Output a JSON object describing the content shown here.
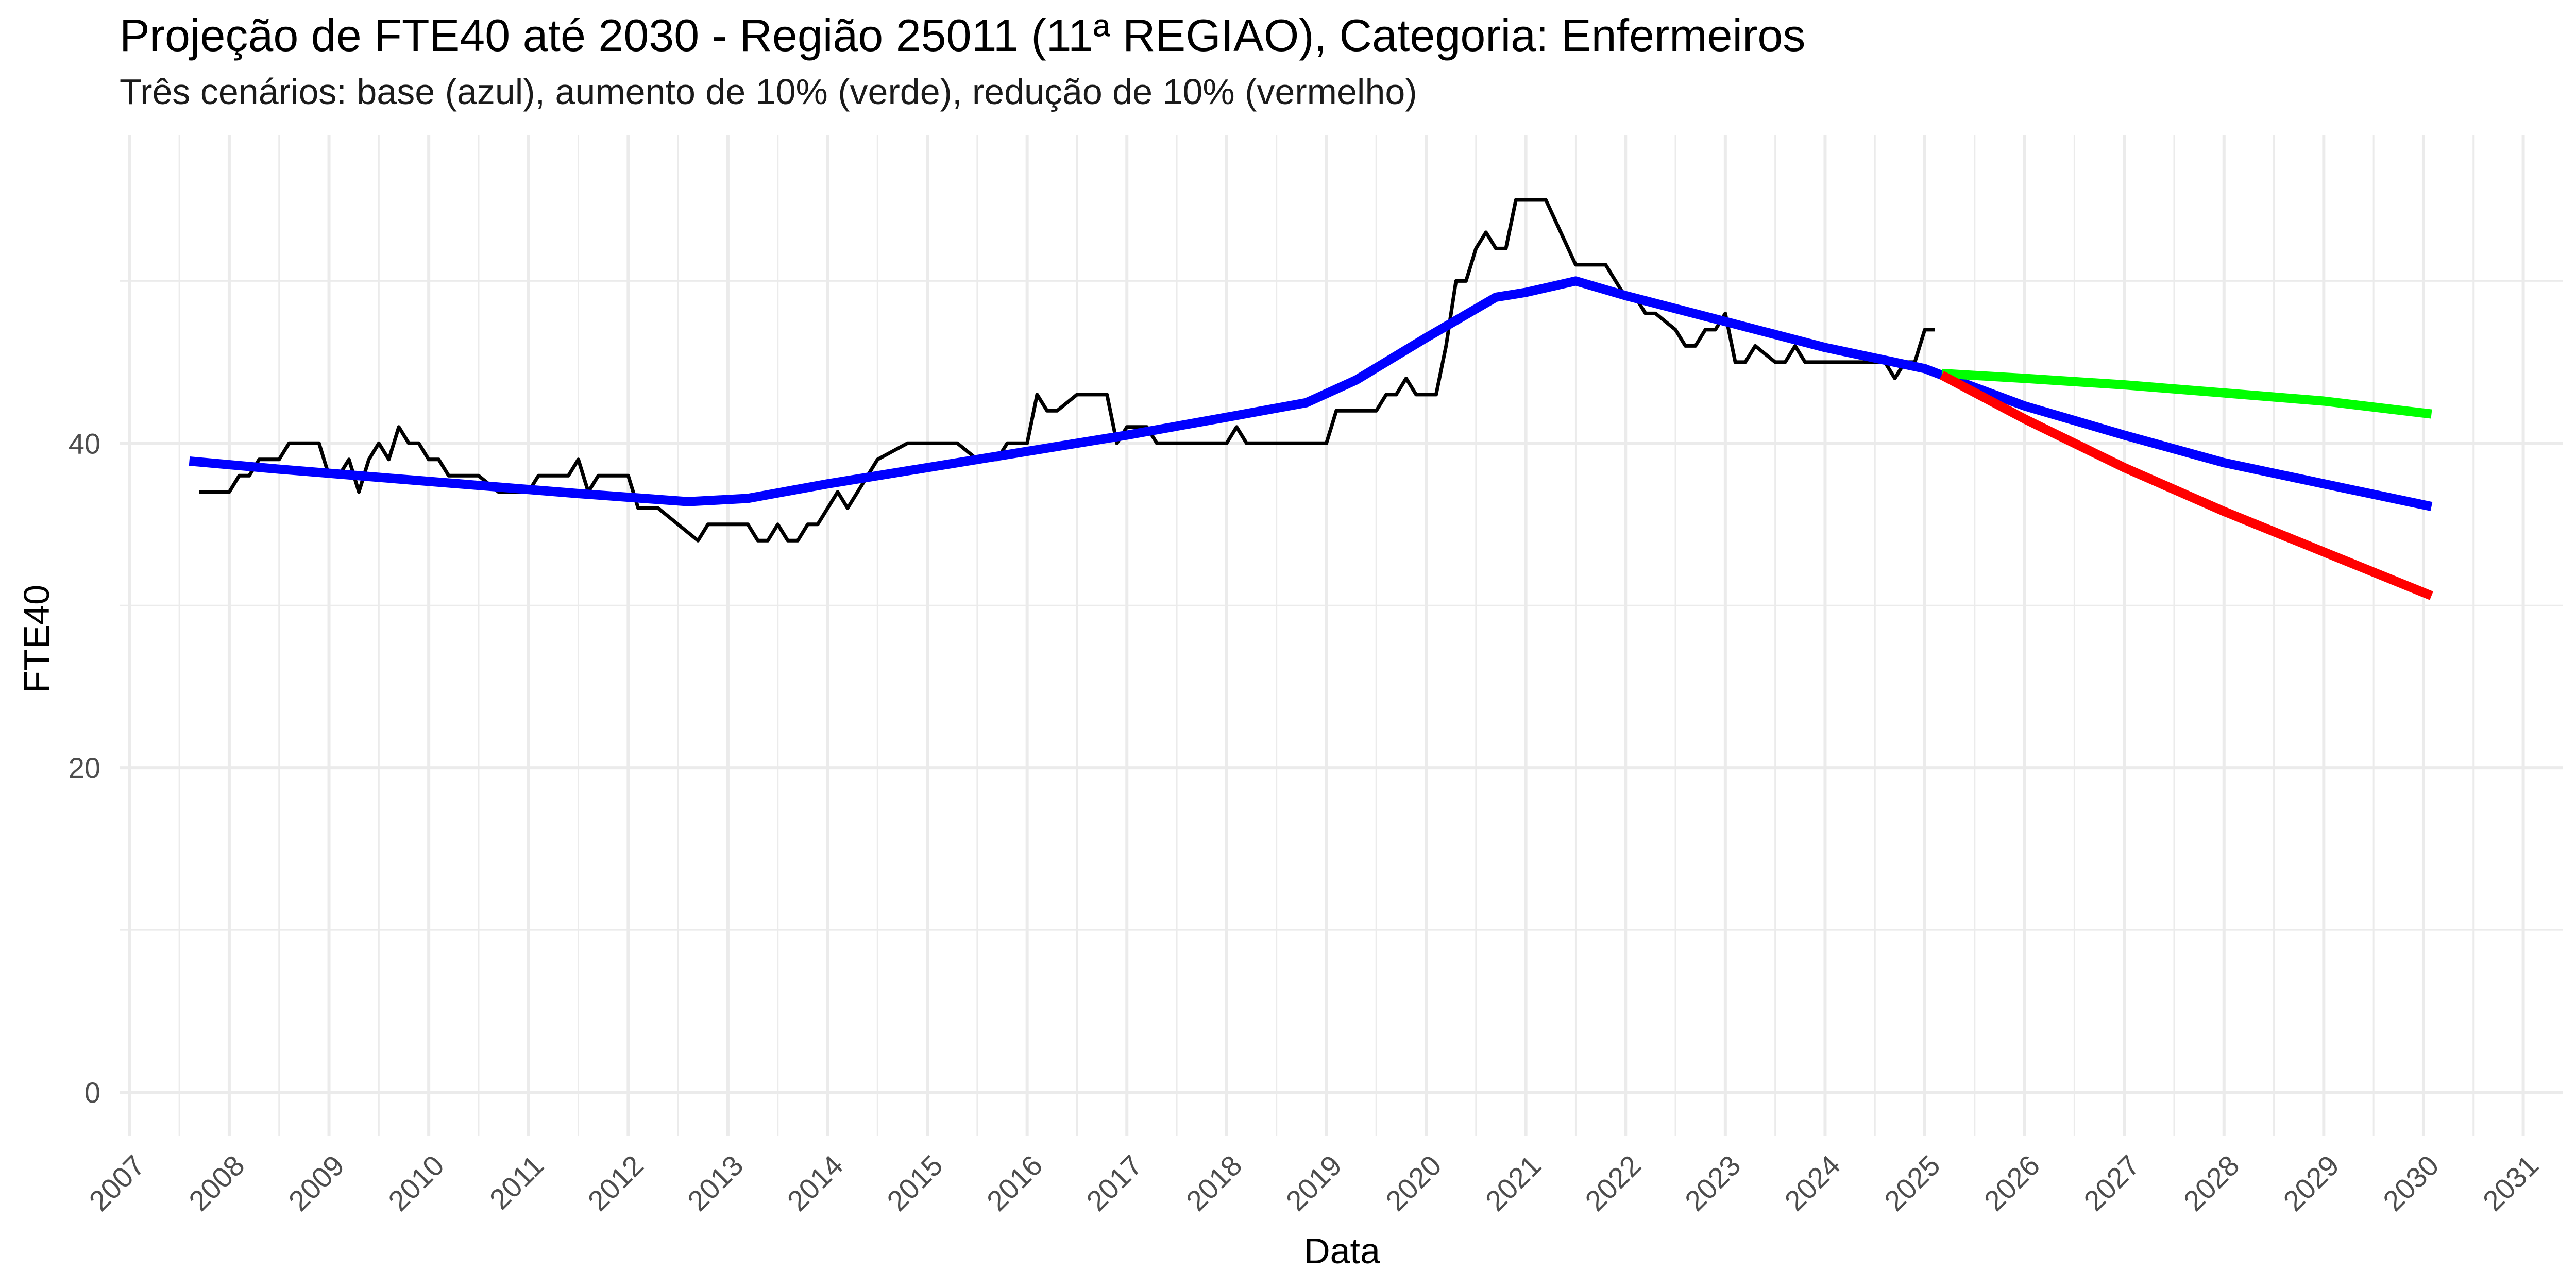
{
  "chart_data": {
    "type": "line",
    "title": "Projeção de FTE40 até 2030 - Região 25011 (11ª REGIAO), Categoria: Enfermeiros",
    "subtitle": "Três cenários: base (azul), aumento de 10% (verde), redução de 10% (vermelho)",
    "xlabel": "Data",
    "ylabel": "FTE40",
    "xlim": [
      2006.9,
      2031.4
    ],
    "ylim": [
      -2.7,
      59
    ],
    "x_ticks": [
      "2007",
      "2008",
      "2009",
      "2010",
      "2011",
      "2012",
      "2013",
      "2014",
      "2015",
      "2016",
      "2017",
      "2018",
      "2019",
      "2020",
      "2021",
      "2022",
      "2023",
      "2024",
      "2025",
      "2026",
      "2027",
      "2028",
      "2029",
      "2030",
      "2031"
    ],
    "y_ticks": [
      0,
      20,
      40
    ],
    "grid": true,
    "legend": "none",
    "colors": {
      "observed": "#000000",
      "base": "#0000ff",
      "increase": "#00ff00",
      "decrease": "#ff0000",
      "grid": "#ebebeb"
    },
    "series": [
      {
        "key": "observed",
        "x": [
          2007.7,
          2008.0,
          2008.1,
          2008.2,
          2008.3,
          2008.5,
          2008.6,
          2008.9,
          2009.0,
          2009.1,
          2009.2,
          2009.3,
          2009.4,
          2009.5,
          2009.6,
          2009.7,
          2009.8,
          2009.9,
          2010.0,
          2010.1,
          2010.2,
          2010.3,
          2010.5,
          2010.7,
          2010.8,
          2011.0,
          2011.1,
          2011.2,
          2011.3,
          2011.4,
          2011.5,
          2011.6,
          2011.7,
          2012.0,
          2012.1,
          2012.2,
          2012.3,
          2012.5,
          2012.7,
          2012.8,
          2013.0,
          2013.1,
          2013.2,
          2013.3,
          2013.4,
          2013.5,
          2013.6,
          2013.7,
          2013.8,
          2013.9,
          2014.0,
          2014.1,
          2014.2,
          2014.3,
          2014.5,
          2014.8,
          2015.0,
          2015.2,
          2015.3,
          2015.5,
          2015.7,
          2015.8,
          2016.0,
          2016.1,
          2016.2,
          2016.3,
          2016.5,
          2016.8,
          2016.9,
          2017.0,
          2017.2,
          2017.3,
          2017.5,
          2017.8,
          2018.0,
          2018.1,
          2018.2,
          2018.3,
          2018.6,
          2019.0,
          2019.1,
          2019.3,
          2019.5,
          2019.6,
          2019.7,
          2019.8,
          2019.9,
          2020.0,
          2020.1,
          2020.2,
          2020.3,
          2020.4,
          2020.5,
          2020.6,
          2020.7,
          2020.8,
          2020.9,
          2021.0,
          2021.2,
          2021.5,
          2021.6,
          2021.8,
          2022.0,
          2022.1,
          2022.2,
          2022.3,
          2022.5,
          2022.6,
          2022.7,
          2022.8,
          2022.9,
          2023.0,
          2023.1,
          2023.2,
          2023.3,
          2023.5,
          2023.6,
          2023.7,
          2023.8,
          2024.0,
          2024.2,
          2024.5,
          2024.6,
          2024.7,
          2024.8,
          2024.9,
          2025.0,
          2025.1
        ],
        "y": [
          37,
          37,
          38,
          38,
          39,
          39,
          40,
          40,
          38,
          38,
          39,
          37,
          39,
          40,
          39,
          41,
          40,
          40,
          39,
          39,
          38,
          38,
          38,
          37,
          37,
          37,
          38,
          38,
          38,
          38,
          39,
          37,
          38,
          38,
          36,
          36,
          36,
          35,
          34,
          35,
          35,
          35,
          35,
          34,
          34,
          35,
          34,
          34,
          35,
          35,
          36,
          37,
          36,
          37,
          39,
          40,
          40,
          40,
          40,
          39,
          39,
          40,
          40,
          43,
          42,
          42,
          43,
          43,
          40,
          41,
          41,
          40,
          40,
          40,
          40,
          41,
          40,
          40,
          40,
          40,
          42,
          42,
          42,
          43,
          43,
          44,
          43,
          43,
          43,
          46,
          50,
          50,
          52,
          53,
          52,
          52,
          55,
          55,
          55,
          51,
          51,
          51,
          49,
          49,
          48,
          48,
          47,
          46,
          46,
          47,
          47,
          48,
          45,
          45,
          46,
          45,
          45,
          46,
          45,
          45,
          45,
          45,
          45,
          44,
          45,
          45,
          47,
          47
        ],
        "stroke_width": 7
      },
      {
        "key": "base",
        "x": [
          2007.6,
          2008.5,
          2009.5,
          2010.5,
          2011.5,
          2012.6,
          2013.2,
          2014.0,
          2015.0,
          2016.0,
          2017.0,
          2018.0,
          2018.8,
          2019.3,
          2020.0,
          2020.7,
          2021.0,
          2021.5,
          2022.0,
          2023.0,
          2024.0,
          2025.0,
          2025.17,
          2026.0,
          2027.0,
          2028.0,
          2029.0,
          2030.08
        ],
        "y": [
          38.9,
          38.4,
          37.9,
          37.4,
          36.9,
          36.4,
          36.6,
          37.5,
          38.5,
          39.5,
          40.5,
          41.6,
          42.5,
          43.9,
          46.5,
          49.0,
          49.3,
          50.0,
          49.1,
          47.5,
          45.9,
          44.6,
          44.2,
          42.3,
          40.5,
          38.8,
          37.5,
          36.1
        ],
        "stroke_width": 18
      },
      {
        "key": "increase",
        "x": [
          2025.17,
          2026.0,
          2027.0,
          2028.0,
          2029.0,
          2030.08
        ],
        "y": [
          44.3,
          44.0,
          43.6,
          43.1,
          42.6,
          41.8
        ],
        "stroke_width": 18
      },
      {
        "key": "decrease",
        "x": [
          2025.17,
          2026.0,
          2027.0,
          2028.0,
          2029.0,
          2030.08
        ],
        "y": [
          44.2,
          41.5,
          38.5,
          35.8,
          33.3,
          30.6
        ],
        "stroke_width": 18
      }
    ]
  }
}
